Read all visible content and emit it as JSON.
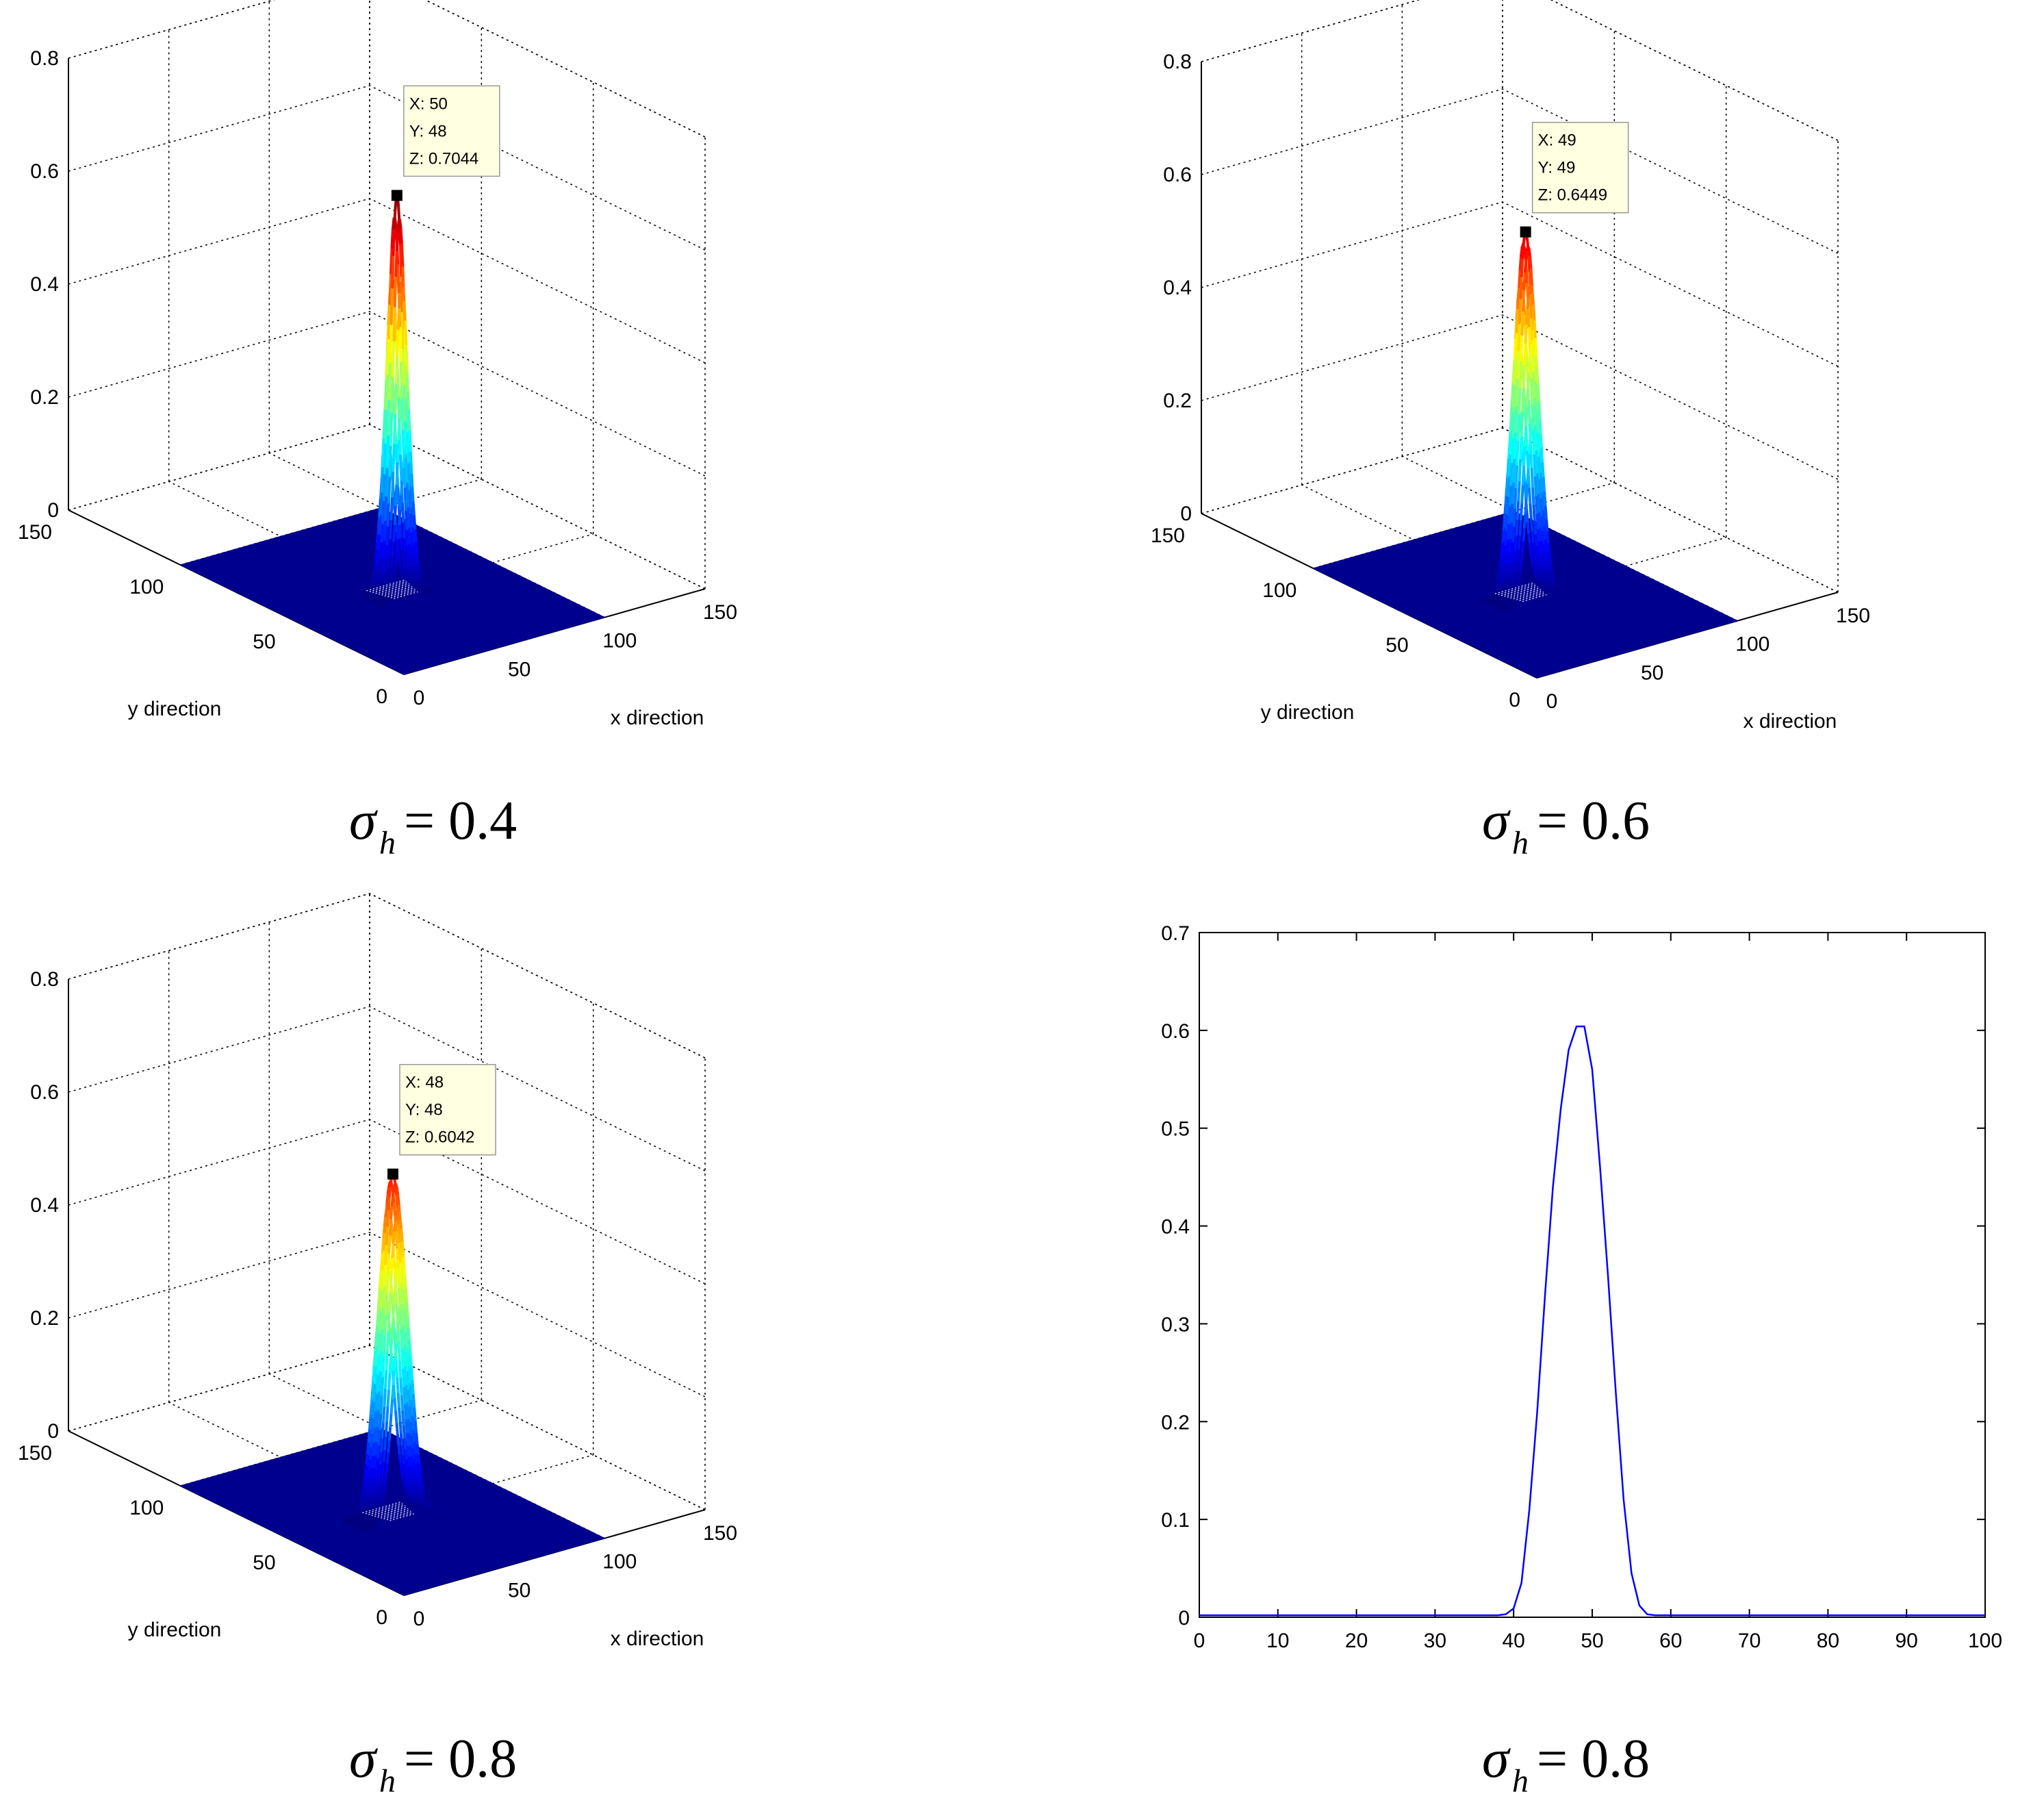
{
  "chart_data": [
    {
      "type": "surface",
      "panel": "top-left",
      "caption": {
        "symbol": "σ",
        "subscript": "h",
        "rest": "= 0.4"
      },
      "xlabel": "x direction",
      "ylabel": "y direction",
      "x_ticks": [
        "0",
        "50",
        "100",
        "150"
      ],
      "y_ticks": [
        "0",
        "50",
        "100",
        "150"
      ],
      "z_ticks": [
        "0",
        "0.2",
        "0.4",
        "0.6",
        "0.8"
      ],
      "xlim": [
        0,
        150
      ],
      "ylim": [
        0,
        150
      ],
      "zlim": [
        0,
        0.8
      ],
      "peak": {
        "x": 50,
        "y": 48,
        "z": 0.7044
      },
      "datatip": [
        "X: 50",
        "Y: 48",
        "Z: 0.7044"
      ],
      "colormap": "jet",
      "grid": true
    },
    {
      "type": "surface",
      "panel": "top-right",
      "caption": {
        "symbol": "σ",
        "subscript": "h",
        "rest": "= 0.6"
      },
      "xlabel": "x direction",
      "ylabel": "y direction",
      "x_ticks": [
        "0",
        "50",
        "100",
        "150"
      ],
      "y_ticks": [
        "0",
        "50",
        "100",
        "150"
      ],
      "z_ticks": [
        "0",
        "0.2",
        "0.4",
        "0.6",
        "0.8"
      ],
      "xlim": [
        0,
        150
      ],
      "ylim": [
        0,
        150
      ],
      "zlim": [
        0,
        0.8
      ],
      "peak": {
        "x": 49,
        "y": 49,
        "z": 0.6449
      },
      "datatip": [
        "X: 49",
        "Y: 49",
        "Z: 0.6449"
      ],
      "colormap": "jet",
      "grid": true
    },
    {
      "type": "surface",
      "panel": "bottom-left",
      "caption": {
        "symbol": "σ",
        "subscript": "h",
        "rest": "= 0.8"
      },
      "xlabel": "x direction",
      "ylabel": "y direction",
      "x_ticks": [
        "0",
        "50",
        "100",
        "150"
      ],
      "y_ticks": [
        "0",
        "50",
        "100",
        "150"
      ],
      "z_ticks": [
        "0",
        "0.2",
        "0.4",
        "0.6",
        "0.8"
      ],
      "xlim": [
        0,
        150
      ],
      "ylim": [
        0,
        150
      ],
      "zlim": [
        0,
        0.8
      ],
      "peak": {
        "x": 48,
        "y": 48,
        "z": 0.6042
      },
      "datatip": [
        "X: 48",
        "Y: 48",
        "Z: 0.6042"
      ],
      "colormap": "jet",
      "grid": true
    },
    {
      "type": "line",
      "panel": "bottom-right",
      "caption": {
        "symbol": "σ",
        "subscript": "h",
        "rest": "= 0.8"
      },
      "x_ticks": [
        "0",
        "10",
        "20",
        "30",
        "40",
        "50",
        "60",
        "70",
        "80",
        "90",
        "100"
      ],
      "y_ticks": [
        "0",
        "0.1",
        "0.2",
        "0.3",
        "0.4",
        "0.5",
        "0.6",
        "0.7"
      ],
      "xlim": [
        0,
        100
      ],
      "ylim": [
        0,
        0.7
      ],
      "grid": false,
      "series": [
        {
          "color": "#0000ff",
          "x": [
            0,
            10,
            20,
            30,
            38,
            39,
            40,
            41,
            42,
            43,
            44,
            45,
            46,
            47,
            48,
            49,
            50,
            51,
            52,
            53,
            54,
            55,
            56,
            57,
            58,
            60,
            70,
            80,
            90,
            100
          ],
          "y": [
            0.002,
            0.002,
            0.002,
            0.002,
            0.002,
            0.003,
            0.009,
            0.035,
            0.11,
            0.21,
            0.33,
            0.44,
            0.52,
            0.58,
            0.604,
            0.604,
            0.56,
            0.46,
            0.35,
            0.23,
            0.12,
            0.045,
            0.012,
            0.003,
            0.002,
            0.002,
            0.002,
            0.002,
            0.002,
            0.002
          ]
        }
      ]
    }
  ]
}
